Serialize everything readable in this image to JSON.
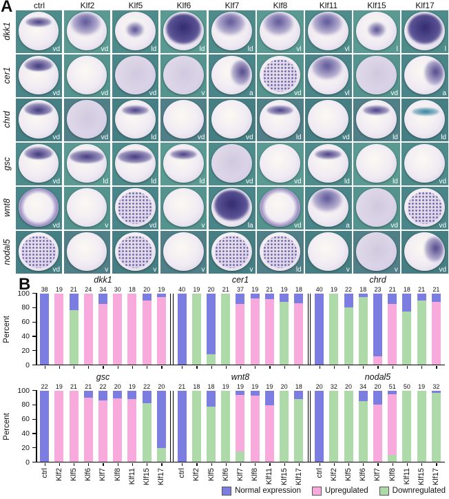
{
  "panelA": {
    "label": "A",
    "columns": [
      "ctrl",
      "Klf2",
      "Klf5",
      "Klf6",
      "Klf7",
      "Klf8",
      "Klf11",
      "Klf15",
      "Klf17"
    ],
    "rows": [
      {
        "gene": "dkk1",
        "cells": [
          {
            "view": "vd",
            "stain": "band"
          },
          {
            "view": "vd",
            "stain": "top"
          },
          {
            "view": "ld",
            "stain": "blob"
          },
          {
            "view": "ld",
            "stain": "dark"
          },
          {
            "view": "ld",
            "stain": "top"
          },
          {
            "view": "vl",
            "stain": "top"
          },
          {
            "view": "vl",
            "stain": "top"
          },
          {
            "view": "l",
            "stain": "blob"
          },
          {
            "view": "l",
            "stain": "dark"
          }
        ]
      },
      {
        "gene": "cer1",
        "cells": [
          {
            "view": "vd",
            "stain": "arc"
          },
          {
            "view": "vd",
            "stain": "none"
          },
          {
            "view": "vd",
            "stain": "light"
          },
          {
            "view": "v",
            "stain": "light"
          },
          {
            "view": "a",
            "stain": "side"
          },
          {
            "view": "vd",
            "stain": "speckle"
          },
          {
            "view": "vl",
            "stain": "top"
          },
          {
            "view": "vd",
            "stain": "light"
          },
          {
            "view": "a",
            "stain": "side"
          }
        ]
      },
      {
        "gene": "chrd",
        "cells": [
          {
            "view": "vd",
            "stain": "arc"
          },
          {
            "view": "vd",
            "stain": "light"
          },
          {
            "view": "ld",
            "stain": "band"
          },
          {
            "view": "vd",
            "stain": "none"
          },
          {
            "view": "vd",
            "stain": "none"
          },
          {
            "view": "ld",
            "stain": "band"
          },
          {
            "view": "vd",
            "stain": "none"
          },
          {
            "view": "ld",
            "stain": "band"
          },
          {
            "view": "ld",
            "stain": "band-blue"
          }
        ]
      },
      {
        "gene": "gsc",
        "cells": [
          {
            "view": "vd",
            "stain": "arc"
          },
          {
            "view": "ld",
            "stain": "band-wide"
          },
          {
            "view": "ld",
            "stain": "band-wide"
          },
          {
            "view": "ld",
            "stain": "band"
          },
          {
            "view": "vd",
            "stain": "light"
          },
          {
            "view": "vd",
            "stain": "none"
          },
          {
            "view": "ld",
            "stain": "band"
          },
          {
            "view": "ld",
            "stain": "none"
          },
          {
            "view": "vd",
            "stain": "none"
          }
        ]
      },
      {
        "gene": "wnt8",
        "cells": [
          {
            "view": "vd",
            "stain": "ring"
          },
          {
            "view": "v",
            "stain": "none"
          },
          {
            "view": "vd",
            "stain": "speckle"
          },
          {
            "view": "v",
            "stain": "none"
          },
          {
            "view": "la",
            "stain": "dark"
          },
          {
            "view": "vd",
            "stain": "ring"
          },
          {
            "view": "a",
            "stain": "top"
          },
          {
            "view": "vd",
            "stain": "light"
          },
          {
            "view": "vd",
            "stain": "speckle"
          }
        ]
      },
      {
        "gene": "nodal5",
        "cells": [
          {
            "view": "vd",
            "stain": "speckle"
          },
          {
            "view": "v",
            "stain": "none"
          },
          {
            "view": "v",
            "stain": "speckle"
          },
          {
            "view": "v",
            "stain": "none"
          },
          {
            "view": "v",
            "stain": "speckle"
          },
          {
            "view": "ld",
            "stain": "speckle"
          },
          {
            "view": "v",
            "stain": "none"
          },
          {
            "view": "v",
            "stain": "light"
          },
          {
            "view": "vd",
            "stain": "side"
          }
        ]
      }
    ]
  },
  "panelB": {
    "label": "B",
    "ylabel": "Percent",
    "yticks": [
      0,
      20,
      40,
      60,
      80,
      100
    ],
    "legend": [
      {
        "label": "Normal expression",
        "color": "#7b7ee0"
      },
      {
        "label": "Upregulated",
        "color": "#f8aadd"
      },
      {
        "label": "Downregulated",
        "color": "#aed9a9"
      }
    ]
  },
  "chart_data": [
    {
      "type": "bar",
      "stacked": true,
      "title": "dkk1",
      "ylabel": "Percent",
      "ylim": [
        0,
        100
      ],
      "categories": [
        "ctrl",
        "Klf2",
        "Klf5",
        "Klf6",
        "Klf7",
        "Klf8",
        "Klf11",
        "Klf15",
        "Klf17"
      ],
      "counts": [
        38,
        19,
        21,
        24,
        34,
        30,
        18,
        20,
        19
      ],
      "series": [
        {
          "name": "Normal expression",
          "values": [
            100,
            0,
            24,
            0,
            15,
            0,
            0,
            10,
            5
          ]
        },
        {
          "name": "Upregulated",
          "values": [
            0,
            100,
            0,
            100,
            85,
            100,
            100,
            90,
            95
          ]
        },
        {
          "name": "Downregulated",
          "values": [
            0,
            0,
            76,
            0,
            0,
            0,
            0,
            0,
            0
          ]
        }
      ]
    },
    {
      "type": "bar",
      "stacked": true,
      "title": "cer1",
      "ylabel": "Percent",
      "ylim": [
        0,
        100
      ],
      "categories": [
        "ctrl",
        "Klf2",
        "Klf5",
        "Klf6",
        "Klf7",
        "Klf8",
        "Klf11",
        "Klf15",
        "Klf17"
      ],
      "counts": [
        40,
        19,
        20,
        21,
        37,
        19,
        21,
        19,
        18
      ],
      "series": [
        {
          "name": "Normal expression",
          "values": [
            100,
            0,
            85,
            0,
            15,
            7,
            8,
            12,
            14
          ]
        },
        {
          "name": "Upregulated",
          "values": [
            0,
            0,
            0,
            0,
            85,
            93,
            92,
            0,
            86
          ]
        },
        {
          "name": "Downregulated",
          "values": [
            0,
            100,
            15,
            100,
            0,
            0,
            0,
            88,
            0
          ]
        }
      ]
    },
    {
      "type": "bar",
      "stacked": true,
      "title": "chrd",
      "ylabel": "Percent",
      "ylim": [
        0,
        100
      ],
      "categories": [
        "ctrl",
        "Klf2",
        "Klf5",
        "Klf6",
        "Klf7",
        "Klf8",
        "Klf11",
        "Klf15",
        "Klf17"
      ],
      "counts": [
        40,
        19,
        22,
        18,
        23,
        21,
        18,
        21,
        21
      ],
      "series": [
        {
          "name": "Normal expression",
          "values": [
            100,
            0,
            20,
            5,
            88,
            15,
            25,
            10,
            12
          ]
        },
        {
          "name": "Upregulated",
          "values": [
            0,
            0,
            0,
            0,
            12,
            85,
            0,
            0,
            88
          ]
        },
        {
          "name": "Downregulated",
          "values": [
            0,
            100,
            80,
            95,
            0,
            0,
            75,
            90,
            0
          ]
        }
      ]
    },
    {
      "type": "bar",
      "stacked": true,
      "title": "gsc",
      "ylabel": "Percent",
      "ylim": [
        0,
        100
      ],
      "categories": [
        "ctrl",
        "Klf2",
        "Klf5",
        "Klf6",
        "Klf7",
        "Klf8",
        "Klf11",
        "Klf15",
        "Klf17"
      ],
      "counts": [
        22,
        19,
        21,
        21,
        22,
        20,
        19,
        22,
        20
      ],
      "series": [
        {
          "name": "Normal expression",
          "values": [
            100,
            0,
            0,
            10,
            14,
            11,
            12,
            18,
            80
          ]
        },
        {
          "name": "Upregulated",
          "values": [
            0,
            100,
            100,
            90,
            86,
            89,
            88,
            0,
            0
          ]
        },
        {
          "name": "Downregulated",
          "values": [
            0,
            0,
            0,
            0,
            0,
            0,
            0,
            82,
            20
          ]
        }
      ]
    },
    {
      "type": "bar",
      "stacked": true,
      "title": "wnt8",
      "ylabel": "Percent",
      "ylim": [
        0,
        100
      ],
      "categories": [
        "ctrl",
        "Klf2",
        "Klf5",
        "Klf6",
        "Klf7",
        "Klf8",
        "Klf11",
        "Klf15",
        "Klf17"
      ],
      "counts": [
        21,
        18,
        18,
        19,
        19,
        19,
        19,
        20,
        18
      ],
      "series": [
        {
          "name": "Normal expression",
          "values": [
            100,
            0,
            23,
            0,
            6,
            7,
            21,
            0,
            12
          ]
        },
        {
          "name": "Upregulated",
          "values": [
            0,
            0,
            0,
            0,
            79,
            93,
            79,
            0,
            0
          ]
        },
        {
          "name": "Downregulated",
          "values": [
            0,
            100,
            77,
            100,
            15,
            0,
            0,
            100,
            88
          ]
        }
      ]
    },
    {
      "type": "bar",
      "stacked": true,
      "title": "nodal5",
      "ylabel": "Percent",
      "ylim": [
        0,
        100
      ],
      "categories": [
        "ctrl",
        "Klf2",
        "Klf5",
        "Klf6",
        "Klf7",
        "Klf8",
        "Klf11",
        "Klf15",
        "Klf17"
      ],
      "counts": [
        20,
        32,
        20,
        34,
        20,
        51,
        50,
        19,
        32
      ],
      "series": [
        {
          "name": "Normal expression",
          "values": [
            100,
            0,
            0,
            15,
            20,
            5,
            0,
            0,
            3
          ]
        },
        {
          "name": "Upregulated",
          "values": [
            0,
            0,
            0,
            0,
            80,
            85,
            0,
            0,
            0
          ]
        },
        {
          "name": "Downregulated",
          "values": [
            0,
            100,
            100,
            85,
            0,
            10,
            100,
            100,
            97
          ]
        }
      ]
    }
  ]
}
